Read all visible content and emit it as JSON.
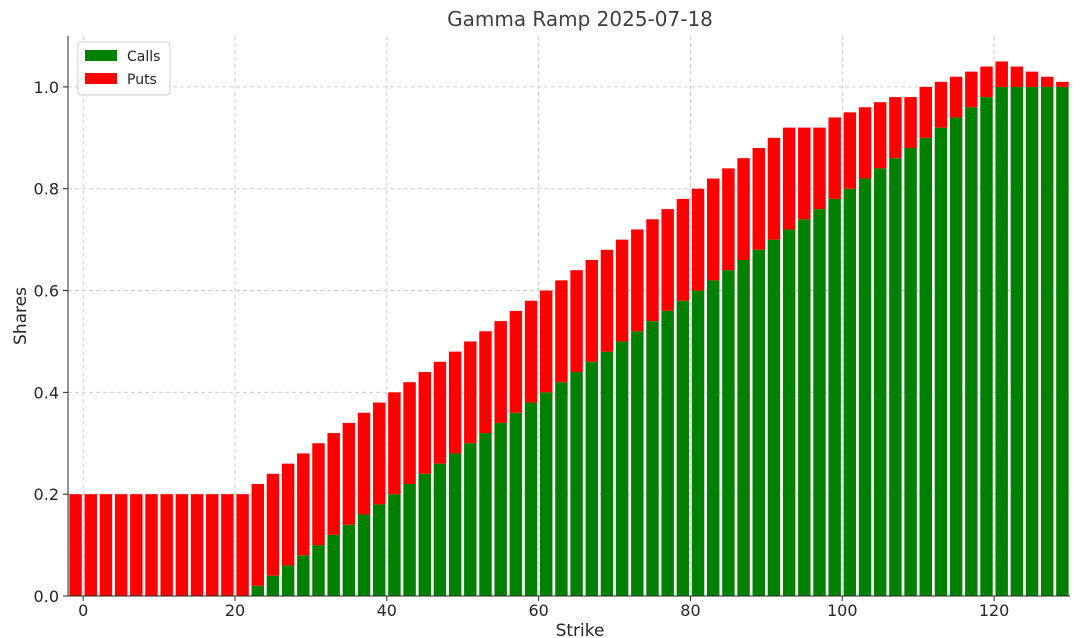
{
  "chart_data": {
    "type": "bar",
    "stacked": true,
    "title": "Gamma Ramp 2025-07-18",
    "xlabel": "Strike",
    "ylabel": "Shares",
    "xlim": [
      -2,
      130
    ],
    "ylim": [
      0,
      1.1
    ],
    "xticks": [
      0,
      20,
      40,
      60,
      80,
      100,
      120
    ],
    "xtick_labels": [
      "0",
      "20",
      "40",
      "60",
      "80",
      "100",
      "120"
    ],
    "yticks": [
      0.0,
      0.2,
      0.4,
      0.6,
      0.8,
      1.0
    ],
    "ytick_labels": [
      "0.0",
      "0.2",
      "0.4",
      "0.6",
      "0.8",
      "1.0"
    ],
    "grid": true,
    "legend_position": "top-left",
    "x": [
      -1,
      1,
      3,
      5,
      7,
      9,
      11,
      13,
      15,
      17,
      19,
      21,
      23,
      25,
      27,
      29,
      31,
      33,
      35,
      37,
      39,
      41,
      43,
      45,
      47,
      49,
      51,
      53,
      55,
      57,
      59,
      61,
      63,
      65,
      67,
      69,
      71,
      73,
      75,
      77,
      79,
      81,
      83,
      85,
      87,
      89,
      91,
      93,
      95,
      97,
      99,
      101,
      103,
      105,
      107,
      109,
      111,
      113,
      115,
      117,
      119,
      121,
      123,
      125,
      127,
      129
    ],
    "series": [
      {
        "name": "Calls",
        "color": "#008000",
        "values": [
          0,
          0,
          0,
          0,
          0,
          0,
          0,
          0,
          0,
          0,
          0,
          0,
          0.02,
          0.04,
          0.06,
          0.08,
          0.1,
          0.12,
          0.14,
          0.16,
          0.18,
          0.2,
          0.22,
          0.24,
          0.26,
          0.28,
          0.3,
          0.32,
          0.34,
          0.36,
          0.38,
          0.4,
          0.42,
          0.44,
          0.46,
          0.48,
          0.5,
          0.52,
          0.54,
          0.56,
          0.58,
          0.6,
          0.62,
          0.64,
          0.66,
          0.68,
          0.7,
          0.72,
          0.74,
          0.76,
          0.78,
          0.8,
          0.82,
          0.84,
          0.86,
          0.88,
          0.9,
          0.92,
          0.94,
          0.96,
          0.98,
          1.0,
          1.0,
          1.0,
          1.0,
          1.0
        ]
      },
      {
        "name": "Puts",
        "color": "#ff0000",
        "values": [
          0.2,
          0.2,
          0.2,
          0.2,
          0.2,
          0.2,
          0.2,
          0.2,
          0.2,
          0.2,
          0.2,
          0.2,
          0.2,
          0.2,
          0.2,
          0.2,
          0.2,
          0.2,
          0.2,
          0.2,
          0.2,
          0.2,
          0.2,
          0.2,
          0.2,
          0.2,
          0.2,
          0.2,
          0.2,
          0.2,
          0.2,
          0.2,
          0.2,
          0.2,
          0.2,
          0.2,
          0.2,
          0.2,
          0.2,
          0.2,
          0.2,
          0.2,
          0.2,
          0.2,
          0.2,
          0.2,
          0.2,
          0.2,
          0.18,
          0.16,
          0.16,
          0.15,
          0.14,
          0.13,
          0.12,
          0.1,
          0.1,
          0.09,
          0.08,
          0.07,
          0.06,
          0.05,
          0.04,
          0.03,
          0.02,
          0.01
        ]
      }
    ]
  }
}
